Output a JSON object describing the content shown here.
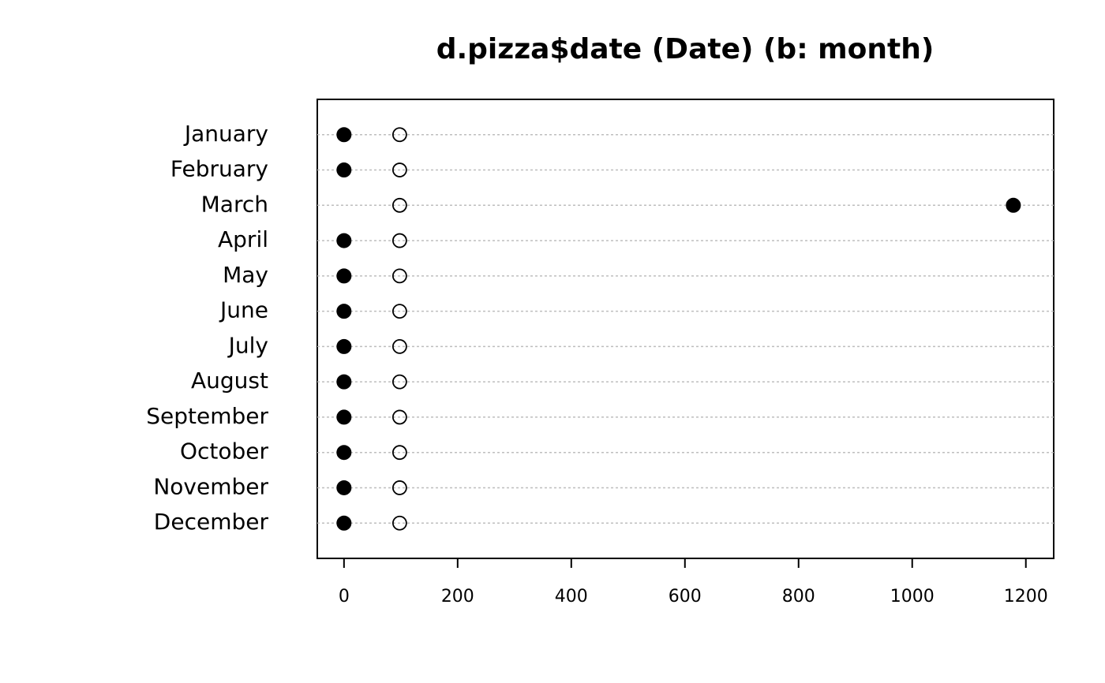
{
  "chart_data": {
    "type": "dot",
    "title": "d.pizza$date (Date) (b: month)",
    "categories": [
      "January",
      "February",
      "March",
      "April",
      "May",
      "June",
      "July",
      "August",
      "September",
      "October",
      "November",
      "December"
    ],
    "series": [
      {
        "color": "#000000",
        "marker": "filled",
        "values": [
          0,
          0,
          1178,
          0,
          0,
          0,
          0,
          0,
          0,
          0,
          0,
          0
        ]
      },
      {
        "color": "#000000",
        "marker": "open",
        "values": [
          98,
          98,
          98,
          98,
          98,
          98,
          98,
          98,
          98,
          98,
          98,
          98
        ]
      }
    ],
    "xlim": [
      -47,
      1249
    ],
    "xticks": [
      0,
      200,
      400,
      600,
      800,
      1000,
      1200
    ],
    "grid": true
  }
}
